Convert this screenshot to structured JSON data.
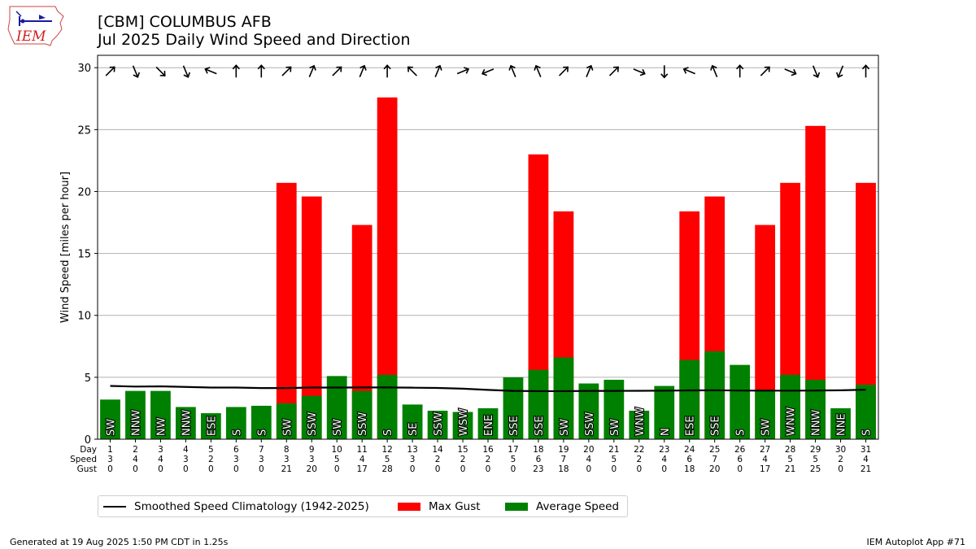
{
  "header": {
    "title_line1": "[CBM] COLUMBUS AFB",
    "title_line2": "Jul 2025 Daily Wind Speed and Direction",
    "logo_text": "IEM"
  },
  "footer": {
    "left": "Generated at 19 Aug 2025 1:50 PM CDT in 1.25s",
    "right": "IEM Autoplot App #71"
  },
  "legend": {
    "items": [
      {
        "label": "Smoothed Speed Climatology (1942-2025)",
        "color": "#000000",
        "kind": "line"
      },
      {
        "label": "Max Gust",
        "color": "#ff0000",
        "kind": "box"
      },
      {
        "label": "Average Speed",
        "color": "#008000",
        "kind": "box"
      }
    ]
  },
  "chart_data": {
    "type": "bar",
    "ylabel": "Wind Speed [miles per hour]",
    "ylim": [
      0,
      31
    ],
    "yticks": [
      0,
      5,
      10,
      15,
      20,
      25,
      30
    ],
    "grid": "horizontal",
    "legend_position": "bottom-left, below chart",
    "row_labels": [
      "Day",
      "Speed",
      "Gust"
    ],
    "days": [
      1,
      2,
      3,
      4,
      5,
      6,
      7,
      8,
      9,
      10,
      11,
      12,
      13,
      14,
      15,
      16,
      17,
      18,
      19,
      20,
      21,
      22,
      23,
      24,
      25,
      26,
      27,
      28,
      29,
      30,
      31
    ],
    "speed_labels": [
      3,
      4,
      4,
      3,
      2,
      3,
      3,
      3,
      3,
      5,
      4,
      5,
      3,
      2,
      2,
      2,
      5,
      6,
      7,
      4,
      5,
      2,
      4,
      6,
      7,
      6,
      4,
      5,
      5,
      2,
      4
    ],
    "gust_labels": [
      0,
      0,
      0,
      0,
      0,
      0,
      0,
      21,
      20,
      0,
      17,
      28,
      0,
      0,
      0,
      0,
      0,
      23,
      18,
      0,
      0,
      0,
      0,
      18,
      20,
      0,
      17,
      21,
      25,
      0,
      21
    ],
    "directions": [
      "SW",
      "NNW",
      "NW",
      "NNW",
      "ESE",
      "S",
      "S",
      "SW",
      "SSW",
      "SW",
      "SSW",
      "S",
      "SE",
      "SSW",
      "WSW",
      "ENE",
      "SSE",
      "SSE",
      "SW",
      "SSW",
      "SW",
      "WNW",
      "N",
      "ESE",
      "SSE",
      "S",
      "SW",
      "WNW",
      "NNW",
      "NNE",
      "S"
    ],
    "series": [
      {
        "name": "Average Speed",
        "color": "#008000",
        "values": [
          3.2,
          3.9,
          3.9,
          2.6,
          2.1,
          2.6,
          2.7,
          2.9,
          3.5,
          5.1,
          3.9,
          5.2,
          2.8,
          2.3,
          2.2,
          2.5,
          5.0,
          5.6,
          6.6,
          4.5,
          4.8,
          2.3,
          4.3,
          6.4,
          7.1,
          6.0,
          4.0,
          5.2,
          4.8,
          2.5,
          4.4
        ]
      },
      {
        "name": "Max Gust",
        "color": "#ff0000",
        "values": [
          0,
          0,
          0,
          0,
          0,
          0,
          0,
          20.7,
          19.6,
          0,
          17.3,
          27.6,
          0,
          0,
          0,
          0,
          0,
          23.0,
          18.4,
          0,
          0,
          0,
          0,
          18.4,
          19.6,
          0,
          17.3,
          20.7,
          25.3,
          0,
          20.7
        ]
      },
      {
        "name": "Smoothed Speed Climatology (1942-2025)",
        "color": "#000000",
        "values": [
          4.3,
          4.25,
          4.27,
          4.22,
          4.17,
          4.17,
          4.13,
          4.13,
          4.17,
          4.17,
          4.18,
          4.18,
          4.16,
          4.14,
          4.08,
          3.98,
          3.9,
          3.88,
          3.88,
          3.9,
          3.9,
          3.91,
          3.92,
          3.94,
          3.95,
          3.93,
          3.92,
          3.92,
          3.93,
          3.95,
          4.0
        ]
      }
    ]
  }
}
